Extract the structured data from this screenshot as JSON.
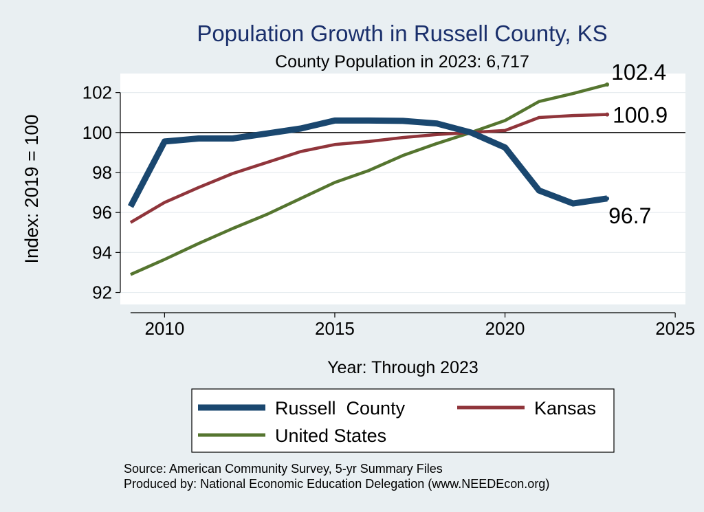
{
  "chart_data": {
    "type": "line",
    "title": "Population Growth in Russell County, KS",
    "subtitle": "County Population in 2023: 6,717",
    "xlabel": "Year: Through 2023",
    "ylabel": "Index: 2019 = 100",
    "xlim": [
      2008.7,
      2025.3
    ],
    "ylim": [
      91.4,
      102.95
    ],
    "x_ticks": [
      2010,
      2015,
      2020,
      2025
    ],
    "y_ticks": [
      92,
      94,
      96,
      98,
      100,
      102
    ],
    "reference_line": 100,
    "grid": true,
    "x": [
      2009,
      2010,
      2011,
      2012,
      2013,
      2014,
      2015,
      2016,
      2017,
      2018,
      2019,
      2020,
      2021,
      2022,
      2023
    ],
    "series": [
      {
        "name": "Russell  County",
        "color": "#1a476f",
        "values": [
          96.3,
          99.55,
          99.7,
          99.7,
          99.95,
          100.2,
          100.6,
          100.6,
          100.58,
          100.45,
          100.0,
          99.25,
          97.1,
          96.45,
          96.7
        ],
        "end_label": "96.7"
      },
      {
        "name": "Kansas",
        "color": "#90353b",
        "values": [
          95.5,
          96.5,
          97.25,
          97.95,
          98.5,
          99.05,
          99.4,
          99.55,
          99.75,
          99.9,
          100.0,
          100.1,
          100.75,
          100.85,
          100.9
        ],
        "end_label": "100.9"
      },
      {
        "name": "United States",
        "color": "#55752f",
        "values": [
          92.9,
          93.65,
          94.45,
          95.2,
          95.9,
          96.7,
          97.5,
          98.1,
          98.85,
          99.45,
          100.0,
          100.6,
          101.55,
          101.95,
          102.4
        ],
        "end_label": "102.4"
      }
    ],
    "legend": {
      "position": "bottom",
      "entries": [
        "Russell  County",
        "Kansas",
        "United States"
      ]
    },
    "source_lines": [
      "Source: American Community Survey, 5-yr Summary Files",
      "Produced by: National Economic Education Delegation (www.NEEDEcon.org)"
    ]
  }
}
